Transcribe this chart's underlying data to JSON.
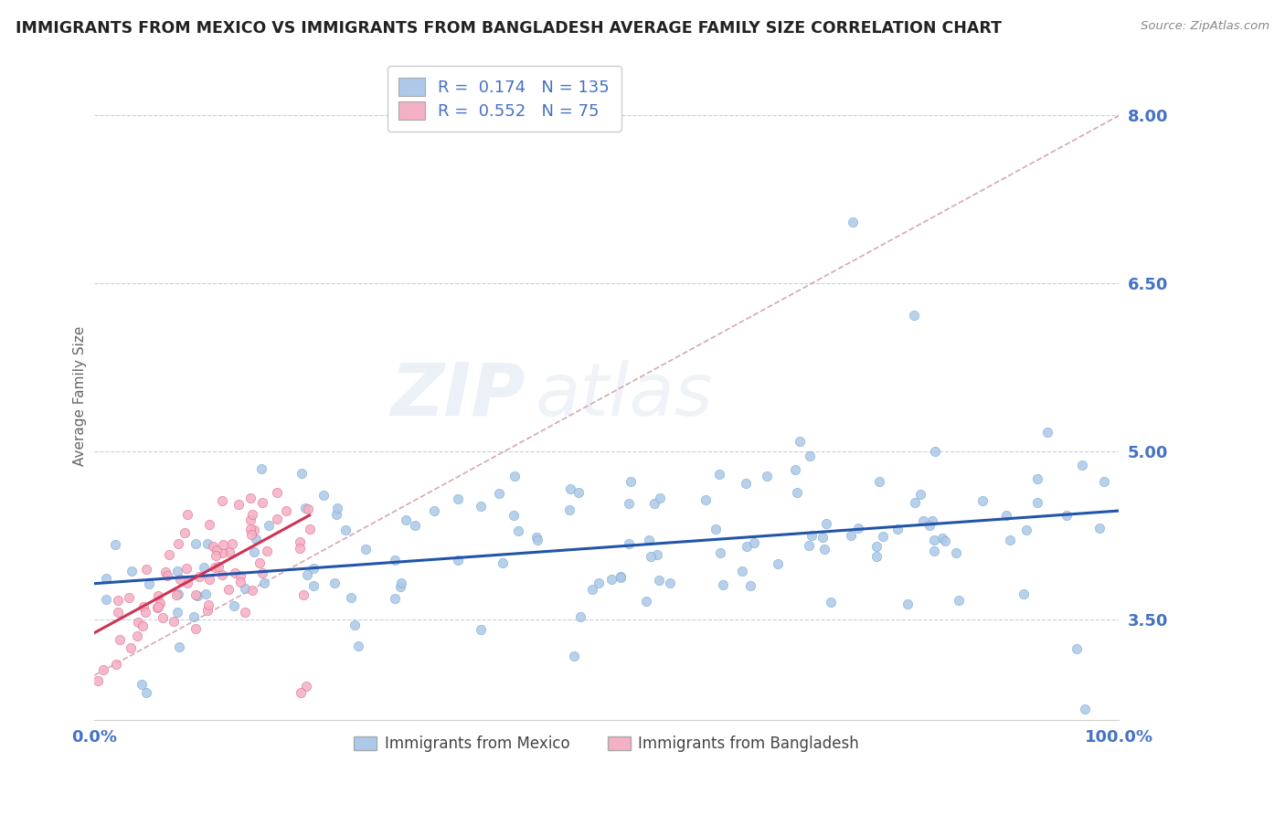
{
  "title": "IMMIGRANTS FROM MEXICO VS IMMIGRANTS FROM BANGLADESH AVERAGE FAMILY SIZE CORRELATION CHART",
  "source": "Source: ZipAtlas.com",
  "ylabel": "Average Family Size",
  "yticks": [
    3.5,
    5.0,
    6.5,
    8.0
  ],
  "xlim": [
    0.0,
    1.0
  ],
  "ylim": [
    2.6,
    8.4
  ],
  "mexico_color": "#adc8e8",
  "mexico_edge": "#7aaed4",
  "bangladesh_color": "#f4b0c4",
  "bangladesh_edge": "#e07090",
  "mexico_line_color": "#2255aa",
  "bangladesh_line_color": "#cc3355",
  "diag_line_color": "#d0a0a8",
  "mexico_R": 0.174,
  "mexico_N": 135,
  "bangladesh_R": 0.552,
  "bangladesh_N": 75,
  "legend_label_mexico": "Immigrants from Mexico",
  "legend_label_bangladesh": "Immigrants from Bangladesh",
  "watermark_zip": "ZIP",
  "watermark_atlas": "atlas",
  "background_color": "#ffffff",
  "title_fontsize": 12.5,
  "label_color": "#4472c4",
  "legend_R_color": "#4472c4",
  "grid_color": "#c8d0dc",
  "source_color": "#888888"
}
